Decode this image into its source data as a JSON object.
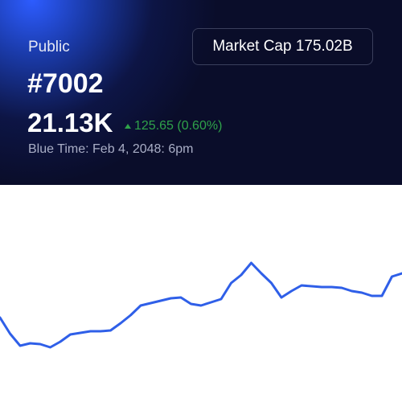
{
  "header": {
    "label": "Public",
    "title": "#7002",
    "price": "21.13K",
    "change": "125.65 (0.60%)",
    "timestamp": "Blue Time: Feb 4, 2048: 6pm"
  },
  "button": {
    "label": "Market Cap 175.02B"
  },
  "chart_data": {
    "type": "line",
    "color": "#2f5fe8",
    "ylim": [
      0,
      270
    ],
    "values": [
      105,
      85,
      70,
      73,
      72,
      68,
      75,
      84,
      86,
      88,
      88,
      89,
      98,
      108,
      120,
      123,
      126,
      129,
      130,
      122,
      120,
      124,
      128,
      148,
      158,
      173,
      160,
      148,
      130,
      138,
      145,
      144,
      143,
      143,
      142,
      138,
      136,
      132,
      132,
      156,
      160
    ]
  }
}
